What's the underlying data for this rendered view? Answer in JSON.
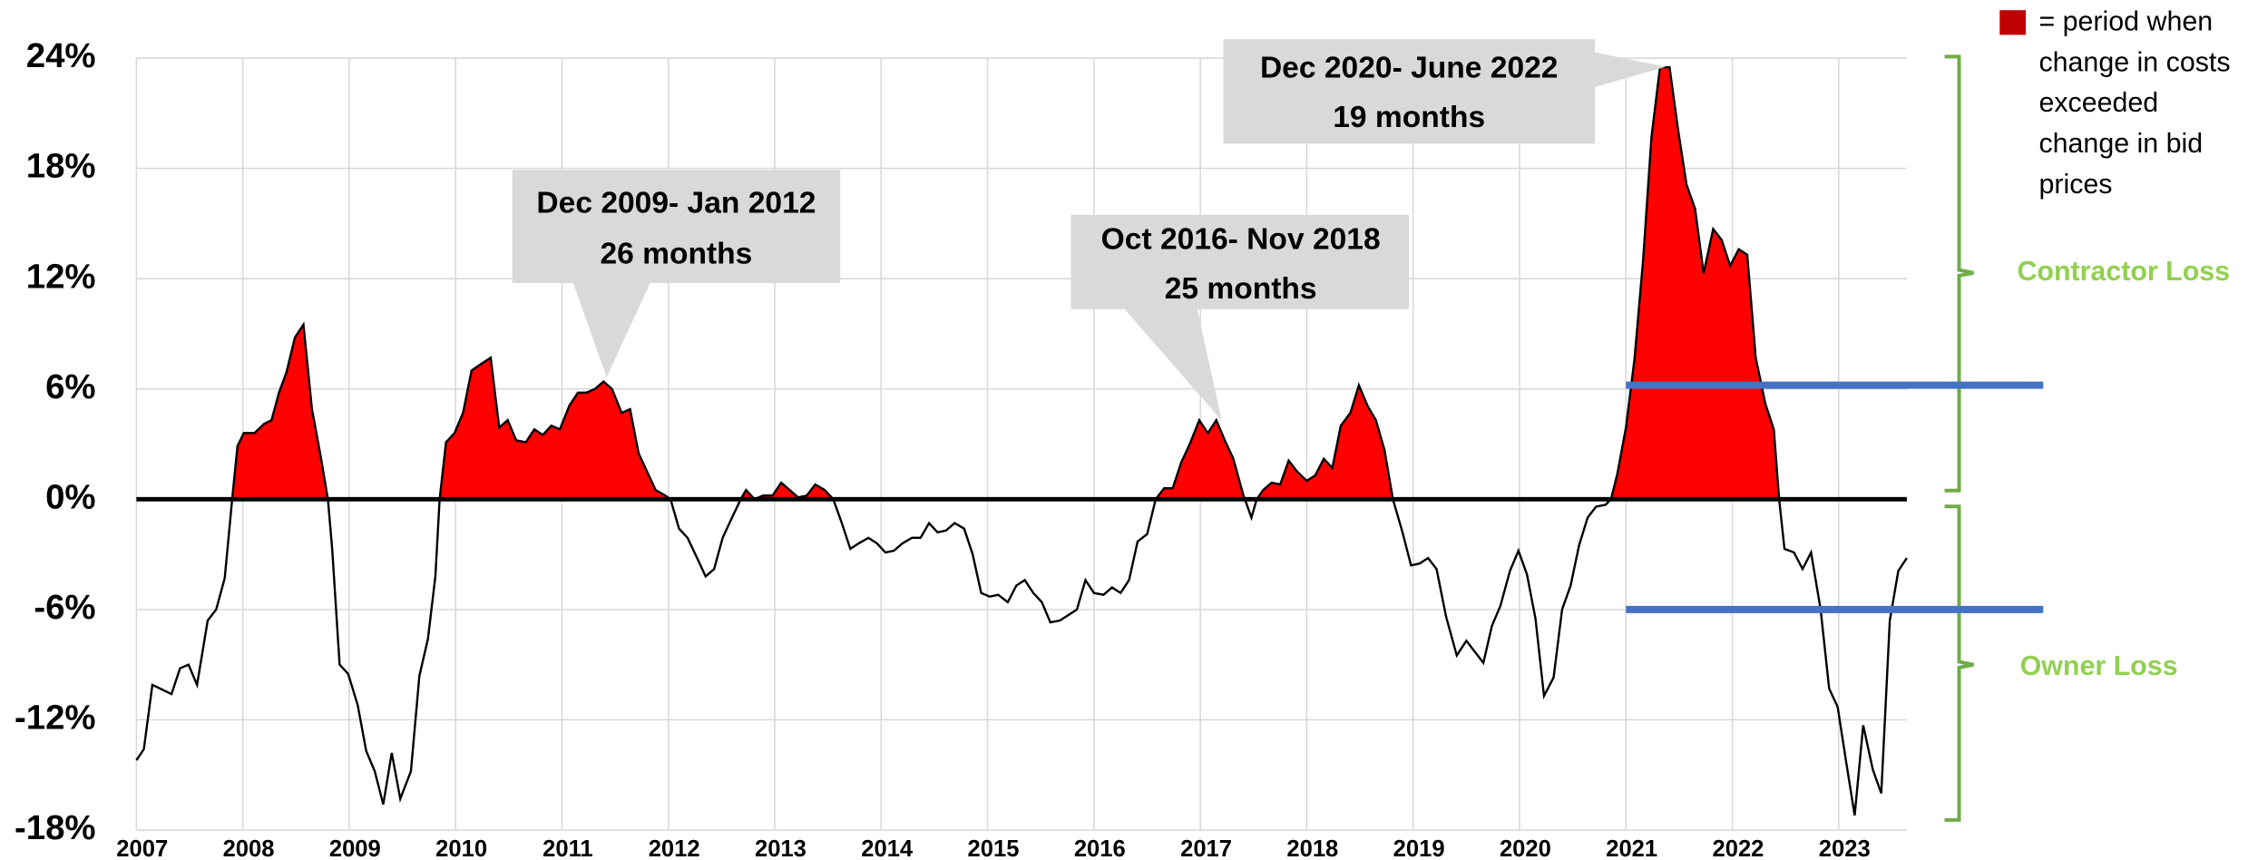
{
  "chart_data": {
    "type": "line",
    "x": [
      2007.0,
      2007.07,
      2007.15,
      2007.33,
      2007.41,
      2007.49,
      2007.57,
      2007.67,
      2007.75,
      2007.83,
      2007.9,
      2007.95,
      2008.01,
      2008.11,
      2008.2,
      2008.27,
      2008.34,
      2008.41,
      2008.49,
      2008.57,
      2008.65,
      2008.73,
      2008.8,
      2008.84,
      2008.91,
      2008.99,
      2009.08,
      2009.16,
      2009.24,
      2009.32,
      2009.4,
      2009.48,
      2009.58,
      2009.66,
      2009.74,
      2009.81,
      2009.85,
      2009.91,
      2009.99,
      2010.07,
      2010.15,
      2010.25,
      2010.33,
      2010.41,
      2010.49,
      2010.57,
      2010.66,
      2010.74,
      2010.82,
      2010.9,
      2010.98,
      2011.07,
      2011.15,
      2011.23,
      2011.31,
      2011.39,
      2011.47,
      2011.56,
      2011.64,
      2011.72,
      2011.8,
      2011.88,
      2011.97,
      2012.02,
      2012.1,
      2012.18,
      2012.27,
      2012.35,
      2012.43,
      2012.51,
      2012.59,
      2012.68,
      2012.73,
      2012.81,
      2012.89,
      2012.98,
      2013.06,
      2013.14,
      2013.22,
      2013.3,
      2013.38,
      2013.47,
      2013.55,
      2013.63,
      2013.71,
      2013.79,
      2013.88,
      2013.96,
      2014.04,
      2014.12,
      2014.2,
      2014.29,
      2014.37,
      2014.45,
      2014.53,
      2014.61,
      2014.69,
      2014.78,
      2014.86,
      2014.94,
      2015.02,
      2015.1,
      2015.19,
      2015.27,
      2015.35,
      2015.43,
      2015.51,
      2015.59,
      2015.68,
      2015.76,
      2015.84,
      2015.92,
      2016.0,
      2016.09,
      2016.17,
      2016.25,
      2016.33,
      2016.41,
      2016.5,
      2016.58,
      2016.66,
      2016.74,
      2016.82,
      2016.9,
      2016.99,
      2017.07,
      2017.15,
      2017.23,
      2017.31,
      2017.4,
      2017.48,
      2017.53,
      2017.59,
      2017.67,
      2017.75,
      2017.83,
      2017.91,
      2018.0,
      2018.08,
      2018.16,
      2018.24,
      2018.32,
      2018.41,
      2018.49,
      2018.57,
      2018.65,
      2018.73,
      2018.81,
      2018.9,
      2018.98,
      2019.06,
      2019.14,
      2019.22,
      2019.31,
      2019.41,
      2019.5,
      2019.58,
      2019.66,
      2019.74,
      2019.82,
      2019.91,
      2019.99,
      2020.07,
      2020.15,
      2020.23,
      2020.32,
      2020.4,
      2020.48,
      2020.56,
      2020.64,
      2020.72,
      2020.81,
      2020.86,
      2020.92,
      2021.0,
      2021.08,
      2021.16,
      2021.24,
      2021.32,
      2021.41,
      2021.49,
      2021.57,
      2021.65,
      2021.73,
      2021.82,
      2021.9,
      2021.98,
      2022.06,
      2022.14,
      2022.22,
      2022.31,
      2022.39,
      2022.44,
      2022.49,
      2022.58,
      2022.66,
      2022.74,
      2022.83,
      2022.91,
      2022.99,
      2023.07,
      2023.15,
      2023.23,
      2023.32,
      2023.4,
      2023.48,
      2023.56,
      2023.64
    ],
    "values": [
      -14.2,
      -13.6,
      -10.1,
      -10.6,
      -9.2,
      -9.0,
      -10.1,
      -6.6,
      -6.0,
      -4.3,
      0,
      2.9,
      3.6,
      3.6,
      4.1,
      4.3,
      5.8,
      6.9,
      8.8,
      9.5,
      4.9,
      2.4,
      0,
      -2.7,
      -9.0,
      -9.5,
      -11.2,
      -13.7,
      -14.8,
      -16.6,
      -13.8,
      -16.3,
      -14.8,
      -9.6,
      -7.6,
      -4.2,
      0,
      3.1,
      3.6,
      4.7,
      7.0,
      7.4,
      7.7,
      3.9,
      4.3,
      3.2,
      3.1,
      3.8,
      3.5,
      4.0,
      3.8,
      5.1,
      5.8,
      5.8,
      6.0,
      6.4,
      6.0,
      4.7,
      4.9,
      2.5,
      1.5,
      0.5,
      0.2,
      0,
      -1.6,
      -2.1,
      -3.2,
      -4.2,
      -3.8,
      -2.1,
      -1.1,
      0,
      0.5,
      0,
      0.2,
      0.2,
      0.9,
      0.5,
      0.1,
      0.2,
      0.8,
      0.5,
      0,
      -1.3,
      -2.7,
      -2.4,
      -2.1,
      -2.4,
      -2.9,
      -2.8,
      -2.4,
      -2.1,
      -2.1,
      -1.3,
      -1.8,
      -1.7,
      -1.3,
      -1.6,
      -3.0,
      -5.1,
      -5.3,
      -5.2,
      -5.6,
      -4.7,
      -4.4,
      -5.1,
      -5.6,
      -6.7,
      -6.6,
      -6.3,
      -6.0,
      -4.4,
      -5.1,
      -5.2,
      -4.8,
      -5.1,
      -4.4,
      -2.3,
      -1.9,
      0,
      0.6,
      0.6,
      2.0,
      3.0,
      4.3,
      3.6,
      4.3,
      3.2,
      2.2,
      0.3,
      -1.0,
      0,
      0.5,
      0.9,
      0.8,
      2.1,
      1.5,
      1.0,
      1.3,
      2.2,
      1.7,
      4.0,
      4.7,
      6.2,
      5.1,
      4.3,
      2.7,
      0,
      -1.8,
      -3.6,
      -3.5,
      -3.2,
      -3.8,
      -6.4,
      -8.5,
      -7.7,
      -8.3,
      -8.9,
      -6.9,
      -5.8,
      -3.9,
      -2.8,
      -4.1,
      -6.5,
      -10.7,
      -9.7,
      -6.0,
      -4.7,
      -2.5,
      -1.0,
      -0.4,
      -0.3,
      0,
      1.4,
      3.9,
      7.6,
      12.9,
      19.7,
      23.5,
      23.5,
      20.1,
      17.1,
      15.8,
      12.3,
      14.7,
      14.1,
      12.7,
      13.6,
      13.3,
      7.7,
      5.2,
      3.8,
      0,
      -2.7,
      -2.9,
      -3.8,
      -2.9,
      -6.0,
      -10.3,
      -11.3,
      -14.3,
      -17.2,
      -12.3,
      -14.7,
      -16.0,
      -6.6,
      -3.9,
      -3.2
    ],
    "line_color": "#000000",
    "fill_color": "#ff0000",
    "xlim": [
      2007,
      2023.64
    ],
    "xticks": [
      2007,
      2008,
      2009,
      2010,
      2011,
      2012,
      2013,
      2014,
      2015,
      2016,
      2017,
      2018,
      2019,
      2020,
      2021,
      2022,
      2023
    ],
    "ylim": [
      -18,
      24
    ],
    "yticks": [
      {
        "value": -18,
        "label": "-18%"
      },
      {
        "value": -12,
        "label": "-12%"
      },
      {
        "value": -6,
        "label": "-6%"
      },
      {
        "value": 0,
        "label": "0%"
      },
      {
        "value": 6,
        "label": "6%"
      },
      {
        "value": 12,
        "label": "12%"
      },
      {
        "value": 18,
        "label": "18%"
      },
      {
        "value": 24,
        "label": "24%"
      }
    ],
    "grid": true,
    "annotations": [
      {
        "lines": [
          "Dec 2009- Jan 2012",
          "26 months"
        ]
      },
      {
        "lines": [
          "Oct 2016- Nov 2018",
          "25 months"
        ]
      },
      {
        "lines": [
          "Dec 2020- June 2022",
          "19 months"
        ]
      }
    ],
    "hlines": {
      "values": [
        6.2,
        -6
      ],
      "from_x": 2021,
      "color": "#4472c4"
    },
    "brace_labels": [
      "Contractor Loss",
      "Owner Loss"
    ],
    "legend": {
      "color": "#c00000",
      "lines": [
        "= period when",
        "change in costs",
        "exceeded",
        "change in bid",
        "prices"
      ]
    }
  }
}
